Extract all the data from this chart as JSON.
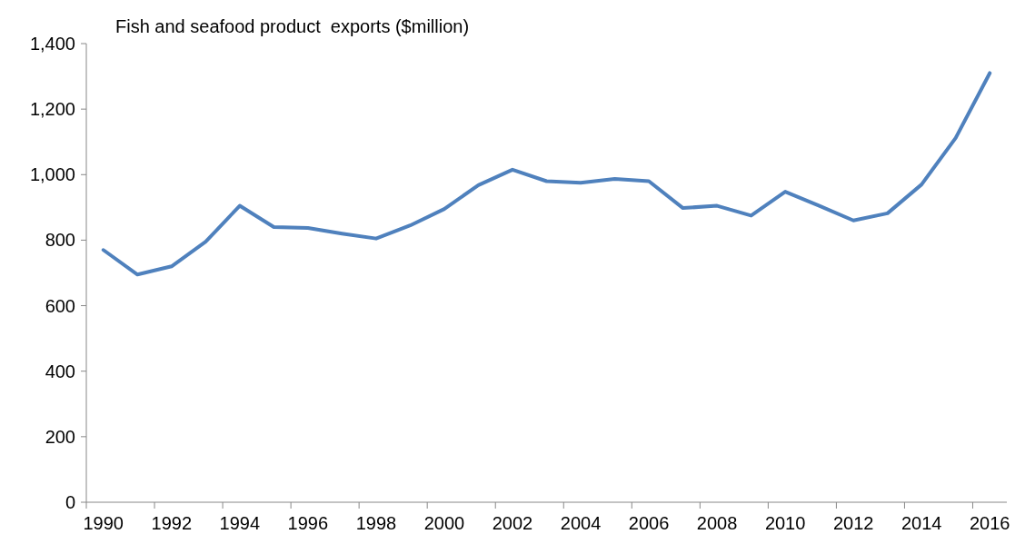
{
  "chart_data": {
    "type": "line",
    "title": "Fish and seafood product  exports ($million)",
    "categories": [
      "1990",
      null,
      "1992",
      null,
      "1994",
      null,
      "1996",
      null,
      "1998",
      null,
      "2000",
      null,
      "2002",
      null,
      "2004",
      null,
      "2006",
      null,
      "2008",
      null,
      "2010",
      null,
      "2012",
      null,
      "2014",
      null,
      "2016"
    ],
    "series": [
      {
        "color": "#4f81bd",
        "values": [
          770,
          695,
          720,
          795,
          905,
          840,
          837,
          820,
          805,
          845,
          895,
          968,
          1015,
          980,
          975,
          987,
          980,
          898,
          905,
          875,
          948,
          905,
          860,
          882,
          970,
          1112,
          1310
        ]
      }
    ],
    "ylim": [
      0,
      1400
    ],
    "yticks": [
      0,
      {
        "value": 200,
        "label": "200"
      },
      {
        "value": 400,
        "label": "400"
      },
      {
        "value": 600,
        "label": "600"
      },
      {
        "value": 800,
        "label": "800"
      },
      {
        "value": 1000,
        "label": "1,000"
      },
      {
        "value": 1200,
        "label": "1,200"
      },
      {
        "value": 1400,
        "label": "1,400"
      }
    ],
    "grid": false,
    "marker": "none",
    "line_style": "solid"
  }
}
